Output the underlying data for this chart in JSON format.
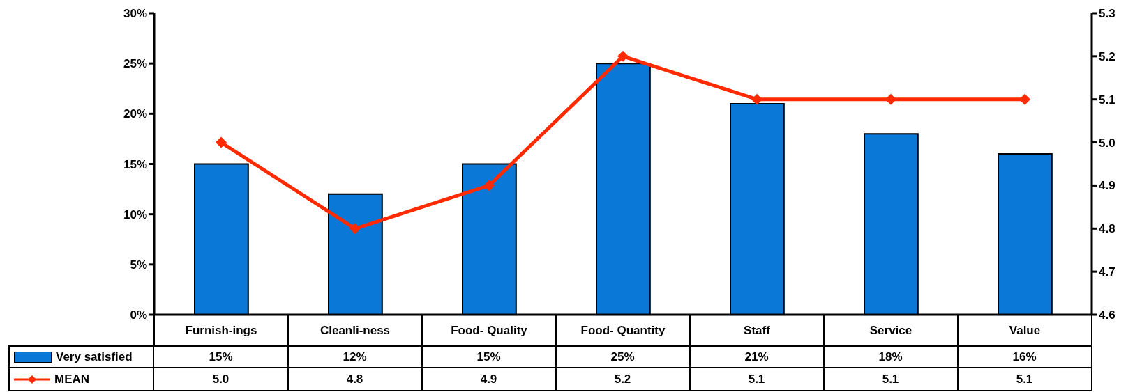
{
  "chart_data": {
    "type": "bar",
    "categories": [
      "Furnish-ings",
      "Cleanli-ness",
      "Food- Quality",
      "Food- Quantity",
      "Staff",
      "Service",
      "Value"
    ],
    "series": [
      {
        "name": "Very satisfied",
        "color": "#0a78d6",
        "values": [
          15,
          12,
          15,
          25,
          21,
          18,
          16
        ],
        "value_labels": [
          "15%",
          "12%",
          "15%",
          "25%",
          "21%",
          "18%",
          "16%"
        ]
      },
      {
        "name": "MEAN",
        "type": "line",
        "axis": "y2",
        "color": "#ff2a00",
        "values": [
          5.0,
          4.8,
          4.9,
          5.2,
          5.1,
          5.1,
          5.1
        ],
        "value_labels": [
          "5.0",
          "4.8",
          "4.9",
          "5.2",
          "5.1",
          "5.1",
          "5.1"
        ]
      }
    ],
    "ylim": [
      0,
      30
    ],
    "yticks": [
      {
        "value": 0,
        "label": "0%"
      },
      {
        "value": 5,
        "label": "5%"
      },
      {
        "value": 10,
        "label": "10%"
      },
      {
        "value": 15,
        "label": "15%"
      },
      {
        "value": 20,
        "label": "20%"
      },
      {
        "value": 25,
        "label": "25%"
      },
      {
        "value": 30,
        "label": "30%"
      }
    ],
    "y2lim": [
      4.6,
      5.3
    ],
    "y2ticks": [
      4.6,
      4.7,
      4.8,
      4.9,
      {
        "value": 5,
        "label": "5.0"
      },
      5.1,
      5.2,
      5.3
    ],
    "marker": "diamond",
    "line_style": "solid",
    "legend": "bottom",
    "grid": false
  }
}
